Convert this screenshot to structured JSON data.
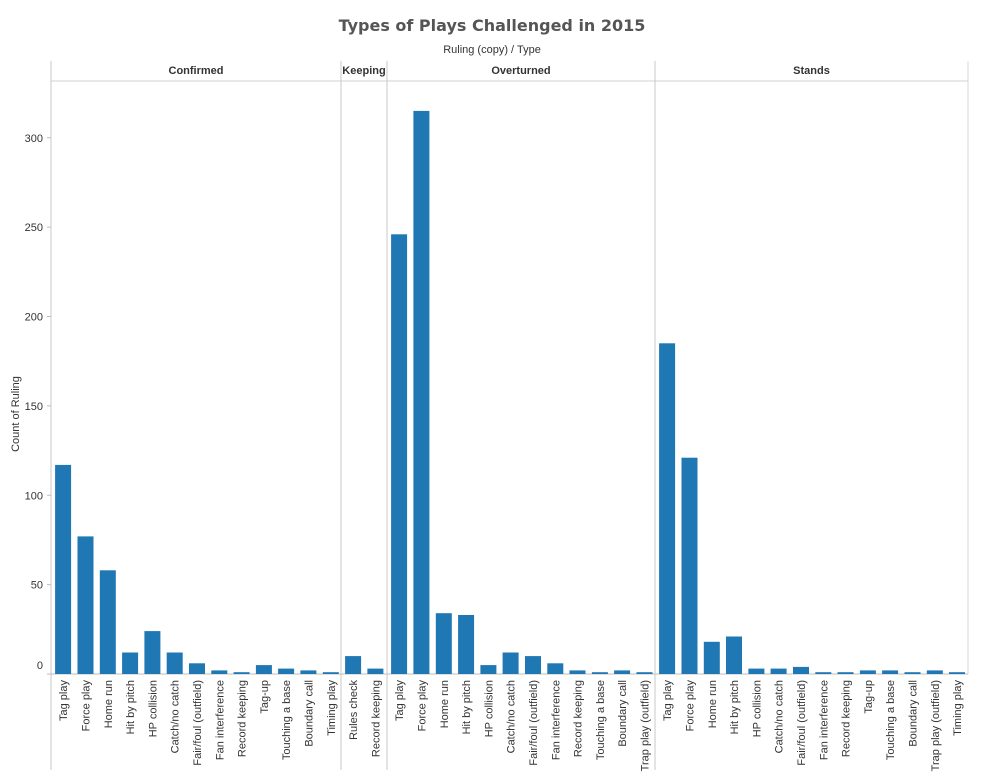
{
  "chart_data": {
    "type": "bar",
    "title": "Types of Plays Challenged in 2015",
    "subtitle": "Ruling (copy)  /  Type",
    "ylabel": "Count of Ruling",
    "xlabel": "",
    "ylim": [
      0,
      330
    ],
    "yticks": [
      0,
      50,
      100,
      150,
      200,
      250,
      300
    ],
    "grid": false,
    "bar_color": "#1f77b4",
    "panels": [
      {
        "name": "Confirmed",
        "categories": [
          "Tag play",
          "Force play",
          "Home run",
          "Hit by pitch",
          "HP collision",
          "Catch/no catch",
          "Fair/foul (outfield)",
          "Fan interference",
          "Record keeping",
          "Tag-up",
          "Touching a base",
          "Boundary call",
          "Timing play"
        ],
        "values": [
          117,
          77,
          58,
          12,
          24,
          12,
          6,
          2,
          1,
          5,
          3,
          2,
          1
        ]
      },
      {
        "name": "Keeping",
        "categories": [
          "Rules check",
          "Record keeping"
        ],
        "values": [
          10,
          3
        ]
      },
      {
        "name": "Overturned",
        "categories": [
          "Tag play",
          "Force play",
          "Home run",
          "Hit by pitch",
          "HP collision",
          "Catch/no catch",
          "Fair/foul (outfield)",
          "Fan interference",
          "Record keeping",
          "Touching a base",
          "Boundary call",
          "Trap play (outfield)"
        ],
        "values": [
          246,
          315,
          34,
          33,
          5,
          12,
          10,
          6,
          2,
          1,
          2,
          1
        ]
      },
      {
        "name": "Stands",
        "categories": [
          "Tag play",
          "Force play",
          "Home run",
          "Hit by pitch",
          "HP collision",
          "Catch/no catch",
          "Fair/foul (outfield)",
          "Fan interference",
          "Record keeping",
          "Tag-up",
          "Touching a base",
          "Boundary call",
          "Trap play (outfield)",
          "Timing play"
        ],
        "values": [
          185,
          121,
          18,
          21,
          3,
          3,
          4,
          1,
          1,
          2,
          2,
          1,
          2,
          1
        ]
      }
    ]
  }
}
